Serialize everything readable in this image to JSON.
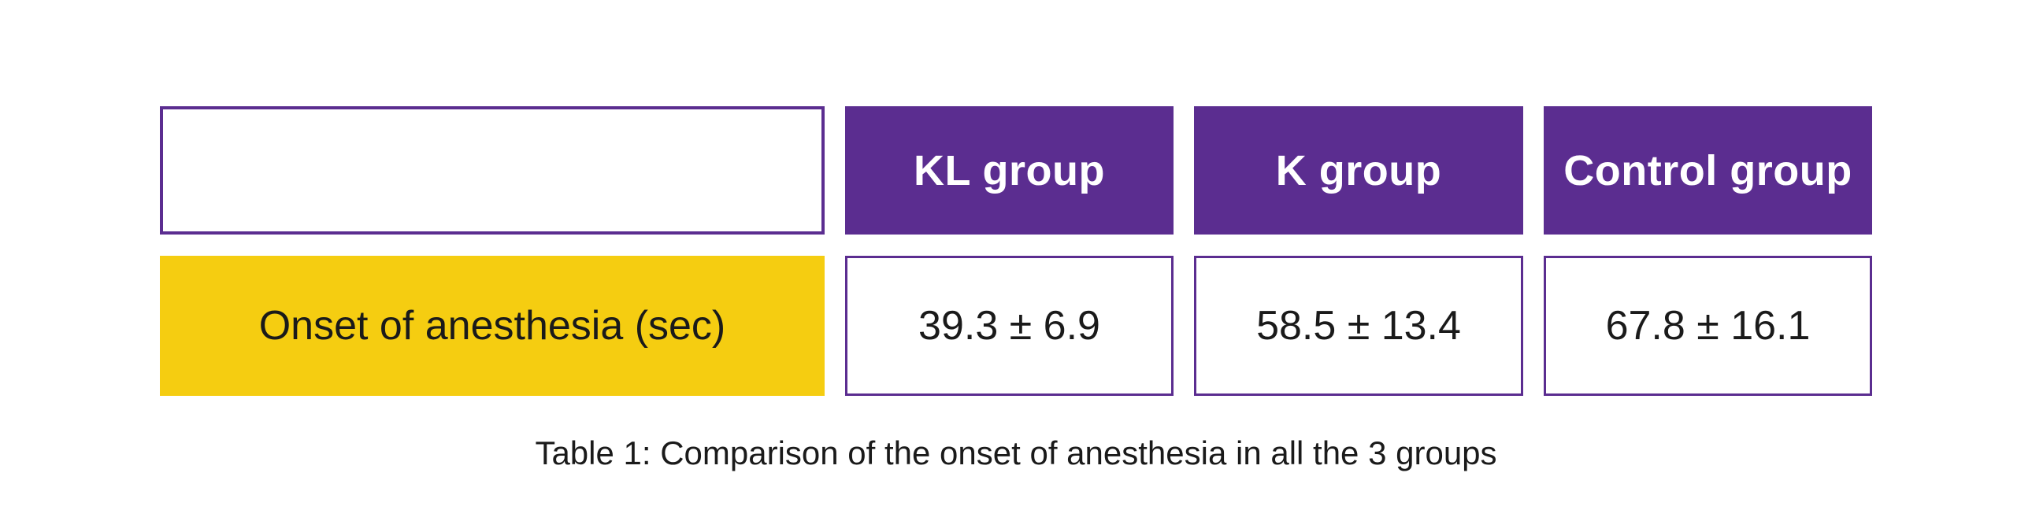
{
  "table": {
    "header": {
      "col1": "",
      "col2": "KL group",
      "col3": "K group",
      "col4": "Control group"
    },
    "row": {
      "label": "Onset of anesthesia (sec)",
      "kl": "39.3 ± 6.9",
      "k": "58.5 ± 13.4",
      "control": "67.8 ± 16.1"
    },
    "caption": "Table 1: Comparison of the onset of anesthesia in all the 3 groups"
  },
  "colors": {
    "purple": "#5b2d90",
    "yellow": "#f5cd11",
    "text_dark": "#1a1a1a",
    "text_light": "#ffffff"
  },
  "chart_data": {
    "type": "table",
    "columns": [
      "",
      "KL group",
      "K group",
      "Control group"
    ],
    "rows": [
      [
        "Onset of anesthesia (sec)",
        "39.3 ± 6.9",
        "58.5 ± 13.4",
        "67.8 ± 16.1"
      ]
    ],
    "title": "Table 1: Comparison of the onset of anesthesia in all the 3 groups",
    "measure": "Onset of anesthesia",
    "units": "sec",
    "values": {
      "KL group": {
        "mean": 39.3,
        "sd": 6.9
      },
      "K group": {
        "mean": 58.5,
        "sd": 13.4
      },
      "Control group": {
        "mean": 67.8,
        "sd": 16.1
      }
    }
  }
}
